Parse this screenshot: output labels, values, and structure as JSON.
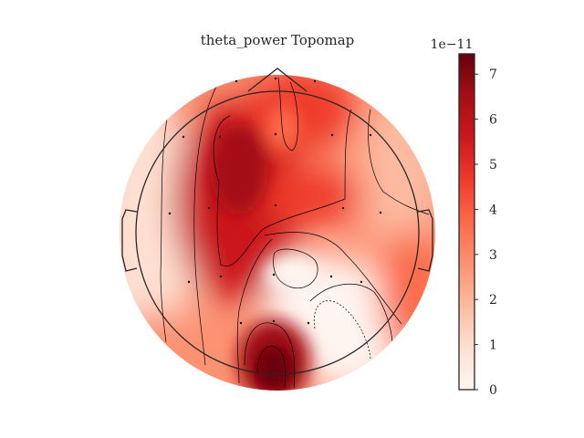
{
  "chart_data": {
    "type": "heatmap",
    "title": "theta_power Topomap",
    "colorbar": {
      "multiplier_label": "1e−11",
      "ticks": [
        0,
        1,
        2,
        3,
        4,
        5,
        6,
        7
      ],
      "tick_labels": [
        "0",
        "1",
        "2",
        "3",
        "4",
        "5",
        "6",
        "7"
      ],
      "range": [
        0,
        7.45
      ],
      "colormap": "Reds"
    },
    "colors": {
      "low": "#fff5f0",
      "high": "#67000d"
    }
  }
}
